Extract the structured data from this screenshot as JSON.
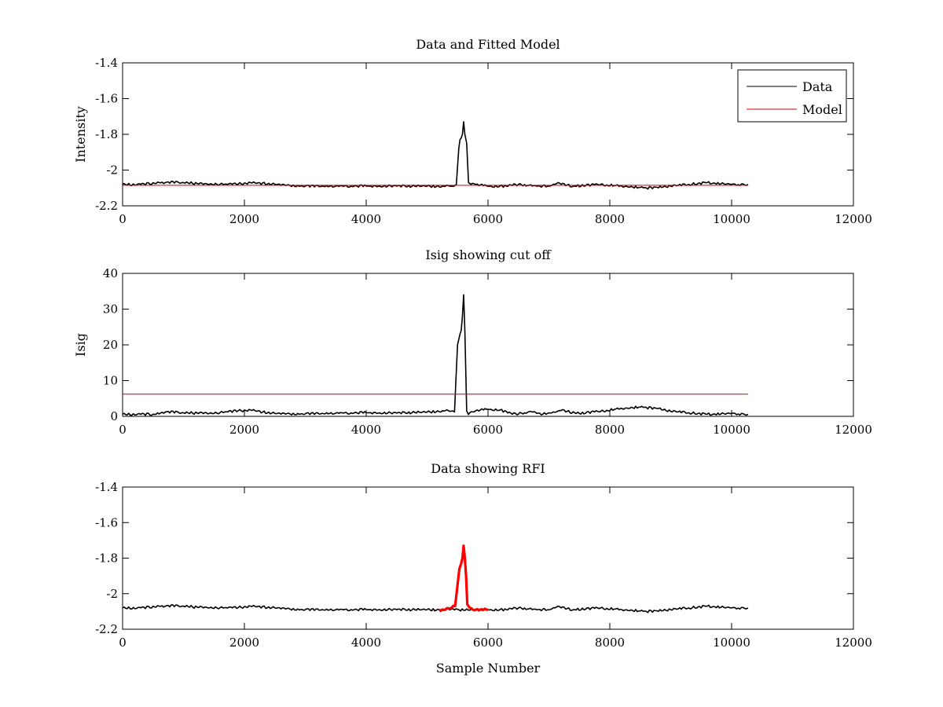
{
  "chart_data": [
    {
      "type": "line",
      "title": "Data and Fitted Model",
      "xlabel": "",
      "ylabel": "Intensity",
      "xlim": [
        0,
        12000
      ],
      "ylim": [
        -2.2,
        -1.4
      ],
      "y_reversed": true,
      "x_ticks": [
        "0",
        "2000",
        "4000",
        "6000",
        "8000",
        "10000",
        "12000"
      ],
      "y_ticks": [
        "-1.4",
        "-1.6",
        "-1.8",
        "-2",
        "-2.2"
      ],
      "legend": {
        "position": "top-right",
        "entries": [
          "Data",
          "Model"
        ]
      },
      "series": [
        {
          "name": "Data",
          "color": "#000000",
          "x": [
            0,
            300,
            600,
            700,
            1000,
            1400,
            1800,
            2100,
            2500,
            3000,
            3500,
            4000,
            4500,
            5000,
            5400,
            5480,
            5520,
            5540,
            5560,
            5580,
            5600,
            5620,
            5650,
            5680,
            5720,
            5800,
            6000,
            6300,
            6500,
            6800,
            7000,
            7150,
            7200,
            7400,
            7800,
            7850,
            8200,
            8600,
            9000,
            9300,
            9600,
            10000,
            10270
          ],
          "y": [
            -2.08,
            -2.08,
            -2.07,
            -2.07,
            -2.07,
            -2.08,
            -2.08,
            -2.07,
            -2.08,
            -2.09,
            -2.09,
            -2.09,
            -2.09,
            -2.09,
            -2.09,
            -2.08,
            -1.88,
            -1.83,
            -1.82,
            -1.8,
            -1.73,
            -1.8,
            -1.85,
            -2.07,
            -2.08,
            -2.08,
            -2.09,
            -2.09,
            -2.08,
            -2.09,
            -2.09,
            -2.07,
            -2.08,
            -2.09,
            -2.08,
            -2.08,
            -2.09,
            -2.1,
            -2.09,
            -2.08,
            -2.07,
            -2.08,
            -2.08
          ]
        },
        {
          "name": "Model",
          "color": "#cc0000",
          "x": [
            0,
            10270
          ],
          "y": [
            -2.085,
            -2.085
          ]
        }
      ]
    },
    {
      "type": "line",
      "title": "Isig showing cut off",
      "xlabel": "",
      "ylabel": "Isig",
      "xlim": [
        0,
        12000
      ],
      "ylim": [
        0,
        40
      ],
      "x_ticks": [
        "0",
        "2000",
        "4000",
        "6000",
        "8000",
        "10000",
        "12000"
      ],
      "y_ticks": [
        "0",
        "10",
        "20",
        "30",
        "40"
      ],
      "series": [
        {
          "color": "#000000",
          "x": [
            0,
            500,
            700,
            1000,
            1500,
            1900,
            2100,
            2300,
            2500,
            3000,
            3500,
            4000,
            4500,
            5000,
            5300,
            5450,
            5500,
            5540,
            5560,
            5580,
            5600,
            5620,
            5650,
            5680,
            5700,
            5800,
            6000,
            6200,
            6400,
            6600,
            6700,
            6900,
            7200,
            7500,
            7800,
            8200,
            8500,
            8800,
            9000,
            9300,
            9600,
            10000,
            10270
          ],
          "y": [
            0.6,
            0.6,
            1.2,
            1.0,
            0.8,
            1.6,
            1.8,
            1.2,
            0.8,
            0.7,
            0.9,
            1.0,
            0.9,
            1.2,
            1.6,
            1.2,
            20,
            23,
            24,
            28,
            34,
            24,
            1.5,
            0.5,
            1.0,
            1.6,
            2.0,
            1.8,
            0.6,
            1.0,
            1.4,
            0.6,
            1.6,
            0.8,
            1.4,
            2.2,
            2.6,
            2.2,
            1.4,
            1.0,
            0.6,
            0.8,
            0.6
          ]
        },
        {
          "color": "#cc0000",
          "x": [
            0,
            10270
          ],
          "y": [
            6.2,
            6.2
          ]
        }
      ]
    },
    {
      "type": "line",
      "title": "Data showing RFI",
      "xlabel": "Sample Number",
      "ylabel": "",
      "xlim": [
        0,
        12000
      ],
      "ylim": [
        -2.2,
        -1.4
      ],
      "y_reversed": true,
      "x_ticks": [
        "0",
        "2000",
        "4000",
        "6000",
        "8000",
        "10000",
        "12000"
      ],
      "y_ticks": [
        "-1.4",
        "-1.6",
        "-1.8",
        "-2",
        "-2.2"
      ],
      "series": [
        {
          "color": "#000000",
          "x": [
            0,
            300,
            600,
            700,
            1000,
            1400,
            1800,
            2100,
            2500,
            3000,
            3500,
            4000,
            4500,
            5000,
            5200,
            6000,
            6300,
            6500,
            6800,
            7000,
            7150,
            7200,
            7400,
            7800,
            7850,
            8200,
            8600,
            9000,
            9300,
            9600,
            10000,
            10270
          ],
          "y": [
            -2.08,
            -2.08,
            -2.07,
            -2.07,
            -2.07,
            -2.08,
            -2.08,
            -2.07,
            -2.08,
            -2.09,
            -2.09,
            -2.09,
            -2.09,
            -2.09,
            -2.09,
            -2.09,
            -2.09,
            -2.08,
            -2.09,
            -2.09,
            -2.07,
            -2.08,
            -2.09,
            -2.08,
            -2.08,
            -2.09,
            -2.1,
            -2.09,
            -2.08,
            -2.07,
            -2.08,
            -2.08
          ]
        },
        {
          "color": "#ff0000",
          "x": [
            5200,
            5300,
            5400,
            5460,
            5500,
            5530,
            5560,
            5580,
            5600,
            5620,
            5640,
            5660,
            5700,
            5750,
            5800,
            5900,
            6000
          ],
          "y": [
            -2.09,
            -2.09,
            -2.08,
            -2.07,
            -1.95,
            -1.86,
            -1.83,
            -1.8,
            -1.73,
            -1.8,
            -1.9,
            -2.06,
            -2.08,
            -2.09,
            -2.09,
            -2.09,
            -2.09
          ]
        }
      ]
    }
  ]
}
